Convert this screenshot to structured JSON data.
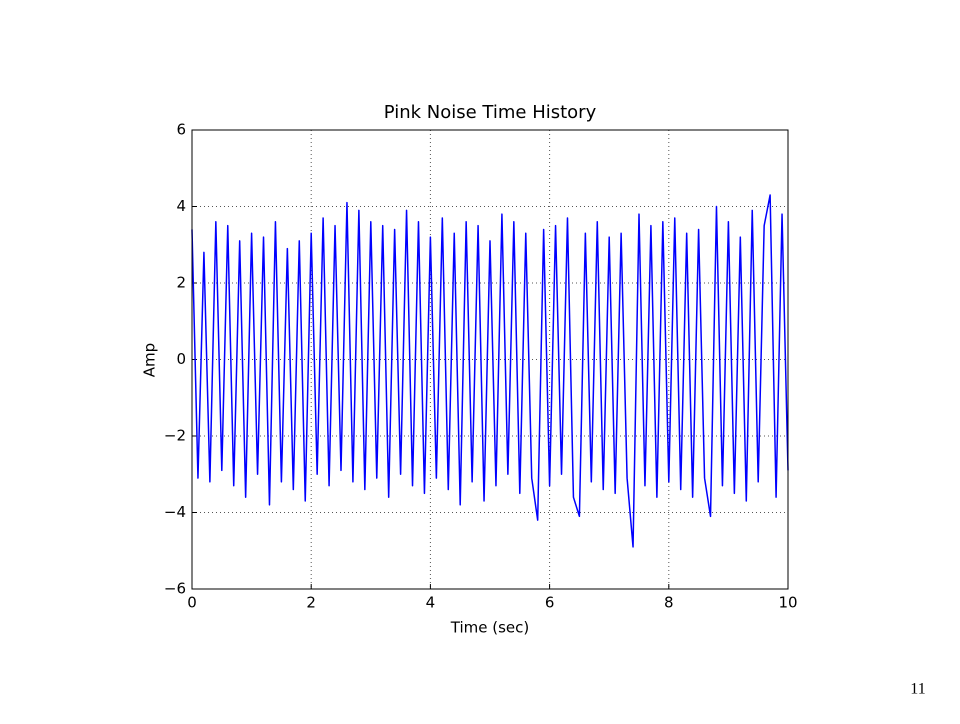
{
  "chart_data": {
    "type": "line",
    "title": "Pink Noise Time History",
    "x_label": "Time (sec)",
    "y_label": "Amp",
    "x": [
      0,
      0.1,
      0.2,
      0.3,
      0.4,
      0.5,
      0.6,
      0.7,
      0.8,
      0.9,
      1,
      1.1,
      1.2,
      1.3,
      1.4,
      1.5,
      1.6,
      1.7,
      1.8,
      1.9,
      2,
      2.1,
      2.2,
      2.3,
      2.4,
      2.5,
      2.6,
      2.7,
      2.8,
      2.9,
      3,
      3.1,
      3.2,
      3.3,
      3.4,
      3.5,
      3.6,
      3.7,
      3.8,
      3.9,
      4,
      4.1,
      4.2,
      4.3,
      4.4,
      4.5,
      4.6,
      4.7,
      4.8,
      4.9,
      5,
      5.1,
      5.2,
      5.3,
      5.4,
      5.5,
      5.6,
      5.7,
      5.8,
      5.9,
      6,
      6.1,
      6.2,
      6.3,
      6.4,
      6.5,
      6.6,
      6.7,
      6.8,
      6.9,
      7,
      7.1,
      7.2,
      7.3,
      7.4,
      7.5,
      7.6,
      7.7,
      7.8,
      7.9,
      8,
      8.1,
      8.2,
      8.3,
      8.4,
      8.5,
      8.6,
      8.7,
      8.8,
      8.9,
      9,
      9.1,
      9.2,
      9.3,
      9.4,
      9.5,
      9.6,
      9.7,
      9.8,
      9.9,
      10
    ],
    "series": [
      {
        "color": "#0000ff",
        "values": [
          3.4,
          -3.1,
          2.8,
          -3.2,
          3.6,
          -2.9,
          3.5,
          -3.3,
          3.1,
          -3.6,
          3.3,
          -3.0,
          3.2,
          -3.8,
          3.6,
          -3.2,
          2.9,
          -3.4,
          3.1,
          -3.7,
          3.3,
          -3.0,
          3.7,
          -3.3,
          3.5,
          -2.9,
          4.1,
          -3.2,
          3.9,
          -3.4,
          3.6,
          -3.1,
          3.5,
          -3.6,
          3.4,
          -3.0,
          3.9,
          -3.3,
          3.6,
          -3.5,
          3.2,
          -3.1,
          3.7,
          -3.4,
          3.3,
          -3.8,
          3.6,
          -3.2,
          3.5,
          -3.7,
          3.1,
          -3.3,
          3.8,
          -3.0,
          3.6,
          -3.5,
          3.3,
          -3.1,
          -4.2,
          3.4,
          -3.3,
          3.5,
          -3.0,
          3.7,
          -3.6,
          -4.1,
          3.3,
          -3.2,
          3.6,
          -3.4,
          3.2,
          -3.5,
          3.3,
          -3.1,
          -4.9,
          3.8,
          -3.3,
          3.5,
          -3.6,
          3.6,
          -3.2,
          3.7,
          -3.4,
          3.3,
          -3.6,
          3.4,
          -3.1,
          -4.1,
          4.0,
          -3.3,
          3.6,
          -3.5,
          3.2,
          -3.7,
          3.9,
          -3.2,
          3.5,
          4.3,
          -3.6,
          3.8,
          -2.9
        ]
      }
    ],
    "xlim": [
      0,
      10
    ],
    "xticks": [
      0,
      2,
      4,
      6,
      8,
      10
    ],
    "ylim": [
      -6,
      6
    ],
    "yticks": [
      {
        "value": -6,
        "label": "−6"
      },
      {
        "value": -4,
        "label": "−4"
      },
      {
        "value": -2,
        "label": "−2"
      },
      0,
      2,
      4,
      6
    ],
    "grid": true
  },
  "page_number": "11"
}
